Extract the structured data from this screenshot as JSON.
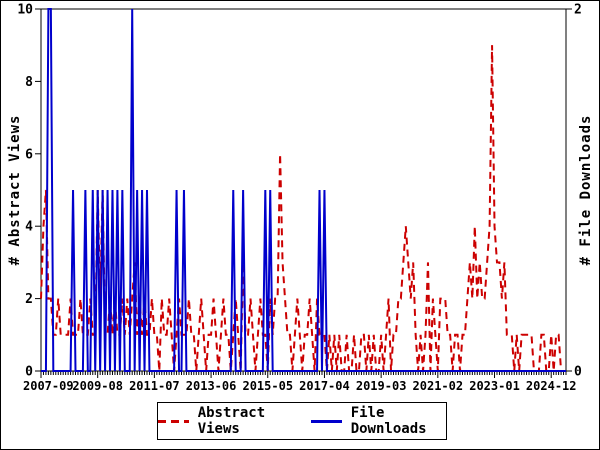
{
  "chart_data": {
    "type": "line",
    "title": "",
    "x_start": "2007-09",
    "x_end": "2025-06",
    "x_interval": "1 month",
    "n_points": 214,
    "x_tick_labels": [
      "2007-09",
      "2009-08",
      "2011-07",
      "2013-06",
      "2015-05",
      "2017-04",
      "2019-03",
      "2021-02",
      "2023-01",
      "2024-12"
    ],
    "x_tick_interval_months": 23,
    "left_axis": {
      "label": "# Abstract Views",
      "min": 0,
      "max": 10,
      "ticks": [
        0,
        2,
        4,
        6,
        8,
        10
      ]
    },
    "right_axis": {
      "label": "# File Downloads",
      "min": 0,
      "max": 2,
      "ticks": [
        0,
        2
      ]
    },
    "grid": false,
    "legend_position": "bottom-center",
    "series": [
      {
        "name": "Abstract Views",
        "color": "#CC0000",
        "style": "dashed",
        "axis": "left",
        "values": [
          2,
          4,
          5,
          2,
          2,
          1,
          1,
          2,
          1,
          1,
          1,
          1,
          2,
          1,
          1,
          1,
          2,
          1,
          1,
          1,
          2,
          1,
          1,
          5,
          2,
          5,
          1,
          1,
          2,
          1,
          2,
          1,
          1,
          2,
          1,
          2,
          1,
          2,
          3,
          1,
          2,
          1,
          2,
          1,
          1,
          2,
          1,
          1,
          0,
          2,
          1,
          1,
          2,
          1,
          0,
          1,
          2,
          1,
          1,
          1,
          2,
          1,
          1,
          0,
          1,
          2,
          1,
          0,
          1,
          1,
          2,
          1,
          0,
          1,
          2,
          1,
          1,
          0,
          1,
          2,
          1,
          0,
          3,
          1,
          1,
          2,
          1,
          0,
          1,
          2,
          1,
          1,
          0,
          2,
          1,
          2,
          2,
          6,
          3,
          2,
          1,
          1,
          0,
          1,
          2,
          1,
          0,
          1,
          1,
          2,
          1,
          0,
          2,
          1,
          1,
          1,
          0,
          1,
          0,
          1,
          0,
          1,
          0,
          0,
          1,
          0,
          0,
          1,
          0,
          0,
          1,
          1,
          0,
          1,
          0,
          1,
          0,
          0,
          1,
          0,
          1,
          2,
          0,
          1,
          1,
          2,
          2,
          3,
          4,
          3,
          2,
          3,
          1,
          0,
          1,
          0,
          1,
          3,
          0,
          2,
          1,
          0,
          2,
          2,
          2,
          1,
          1,
          0,
          1,
          1,
          0,
          1,
          1,
          2,
          3,
          2,
          4,
          2,
          3,
          2,
          2,
          3,
          4,
          9,
          4,
          3,
          3,
          2,
          3,
          1,
          1,
          1,
          0,
          1,
          0,
          1,
          1,
          1,
          1,
          1,
          0,
          0,
          0,
          1,
          1,
          0,
          0,
          1,
          0,
          1,
          1,
          0,
          0,
          0
        ]
      },
      {
        "name": "File Downloads",
        "color": "#0000CC",
        "style": "solid",
        "axis": "right",
        "values": [
          0,
          0,
          0,
          2,
          2,
          0,
          0,
          0,
          0,
          0,
          0,
          0,
          0,
          1,
          0,
          0,
          0,
          0,
          1,
          0,
          0,
          1,
          0,
          1,
          0,
          1,
          0,
          1,
          0,
          1,
          0,
          1,
          0,
          1,
          0,
          0,
          0,
          2,
          0,
          1,
          0,
          1,
          0,
          1,
          0,
          0,
          0,
          0,
          0,
          0,
          0,
          0,
          0,
          0,
          0,
          1,
          0,
          0,
          1,
          0,
          0,
          0,
          0,
          0,
          0,
          0,
          0,
          0,
          0,
          0,
          0,
          0,
          0,
          0,
          0,
          0,
          0,
          0,
          1,
          0,
          0,
          0,
          1,
          0,
          0,
          0,
          0,
          0,
          0,
          0,
          0,
          1,
          0,
          1,
          0,
          0,
          0,
          0,
          0,
          0,
          0,
          0,
          0,
          0,
          0,
          0,
          0,
          0,
          0,
          0,
          0,
          0,
          0,
          1,
          0,
          1,
          0,
          0,
          0,
          0,
          0,
          0,
          0,
          0,
          0,
          0,
          0,
          0,
          0,
          0,
          0,
          0,
          0,
          0,
          0,
          0,
          0,
          0,
          0,
          0,
          0,
          0,
          0,
          0,
          0,
          0,
          0,
          0,
          0,
          0,
          0,
          0,
          0,
          0,
          0,
          0,
          0,
          0,
          0,
          0,
          0,
          0,
          0,
          0,
          0,
          0,
          0,
          0,
          0,
          0,
          0,
          0,
          0,
          0,
          0,
          0,
          0,
          0,
          0,
          0,
          0,
          0,
          0,
          0,
          0,
          0,
          0,
          0,
          0,
          0,
          0,
          0,
          0,
          0,
          0,
          0,
          0,
          0,
          0,
          0,
          0,
          0,
          0,
          0,
          0,
          0,
          0,
          0,
          0,
          0,
          0,
          0,
          0,
          0
        ]
      }
    ]
  },
  "legend": {
    "items": [
      {
        "label": "Abstract Views"
      },
      {
        "label": "File Downloads"
      }
    ]
  }
}
